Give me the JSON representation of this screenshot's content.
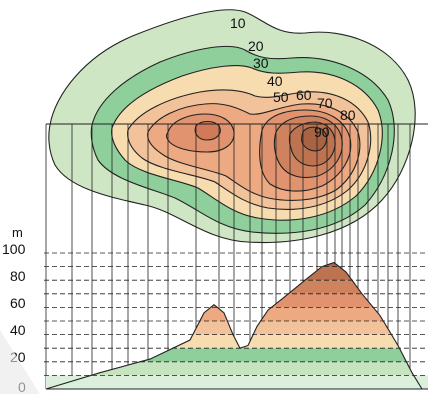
{
  "diagram": {
    "unit": "m",
    "contour_interval": 10,
    "contour_labels": [
      "10",
      "20",
      "30",
      "40",
      "50",
      "60",
      "70",
      "80",
      "90"
    ],
    "profile_axis_ticks": [
      "100",
      "80",
      "60",
      "40",
      "20",
      "0"
    ],
    "profile_guide_levels": [
      0,
      10,
      20,
      30,
      40,
      50,
      60,
      70,
      80,
      90,
      100
    ],
    "elevation_bands": [
      {
        "from": 0,
        "to": 10,
        "color": "#dcefdc"
      },
      {
        "from": 10,
        "to": 20,
        "color": "#c6e4c0"
      },
      {
        "from": 20,
        "to": 30,
        "color": "#8fcf9c"
      },
      {
        "from": 30,
        "to": 40,
        "color": "#f7dcb0"
      },
      {
        "from": 40,
        "to": 50,
        "color": "#f2c29a"
      },
      {
        "from": 50,
        "to": 60,
        "color": "#eda981"
      },
      {
        "from": 60,
        "to": 70,
        "color": "#e0936e"
      },
      {
        "from": 70,
        "to": 80,
        "color": "#cf825e"
      },
      {
        "from": 80,
        "to": 90,
        "color": "#bd7350"
      },
      {
        "from": 90,
        "to": 100,
        "color": "#a86342"
      }
    ]
  }
}
